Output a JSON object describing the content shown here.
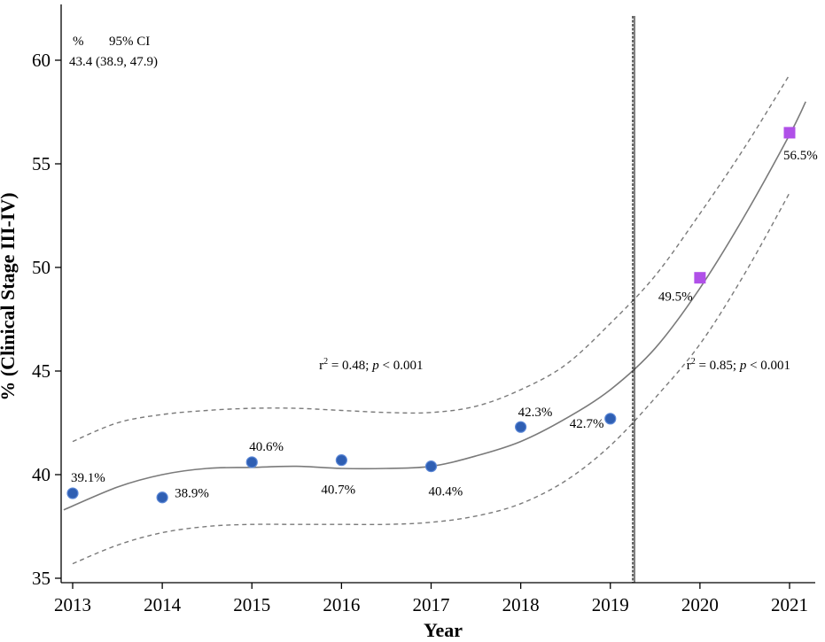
{
  "chart_data": {
    "type": "scatter",
    "xlabel": "Year",
    "ylabel": "% (Clinical Stage III-IV)",
    "xlim": [
      2013,
      2021
    ],
    "ylim": [
      35,
      62.5
    ],
    "x_ticks": [
      "2013",
      "2014",
      "2015",
      "2016",
      "2017",
      "2018",
      "2019",
      "2020",
      "2021"
    ],
    "y_ticks": [
      "35",
      "40",
      "45",
      "50",
      "55",
      "60"
    ],
    "grid": false,
    "legend": {
      "header_pct": "%",
      "header_ci": "95% CI",
      "value": "43.4 (38.9, 47.9)"
    },
    "series": [
      {
        "marker": "circle",
        "color": "#2f5fb3",
        "points": [
          {
            "x": 2013,
            "y": 39.1,
            "label": "39.1%"
          },
          {
            "x": 2014,
            "y": 38.9,
            "label": "38.9%"
          },
          {
            "x": 2015,
            "y": 40.6,
            "label": "40.6%"
          },
          {
            "x": 2016,
            "y": 40.7,
            "label": "40.7%"
          },
          {
            "x": 2017,
            "y": 40.4,
            "label": "40.4%"
          },
          {
            "x": 2018,
            "y": 42.3,
            "label": "42.3%"
          },
          {
            "x": 2019,
            "y": 42.7,
            "label": "42.7%"
          }
        ]
      },
      {
        "marker": "square",
        "color": "#b050e8",
        "points": [
          {
            "x": 2020,
            "y": 49.5,
            "label": "49.5%"
          },
          {
            "x": 2021,
            "y": 56.5,
            "label": "56.5%"
          }
        ]
      }
    ],
    "fit": {
      "x": [
        2012.9,
        2013.5,
        2014,
        2014.5,
        2015,
        2015.5,
        2016,
        2016.5,
        2017,
        2017.5,
        2018,
        2018.5,
        2019,
        2019.5,
        2020,
        2020.5,
        2021,
        2021.18
      ],
      "y": [
        38.3,
        39.4,
        40.0,
        40.3,
        40.35,
        40.4,
        40.3,
        40.3,
        40.4,
        40.9,
        41.6,
        42.7,
        44.1,
        46.1,
        49.0,
        52.5,
        56.4,
        58.0
      ]
    },
    "ci_upper": {
      "x": [
        2013,
        2013.5,
        2014,
        2014.5,
        2015,
        2015.5,
        2016,
        2016.5,
        2017,
        2017.5,
        2018,
        2018.5,
        2019,
        2019.5,
        2020,
        2020.5,
        2021
      ],
      "y": [
        41.6,
        42.5,
        42.9,
        43.1,
        43.2,
        43.2,
        43.1,
        43.0,
        43.0,
        43.3,
        44.1,
        45.3,
        47.3,
        49.6,
        52.6,
        55.8,
        59.3
      ]
    },
    "ci_lower": {
      "x": [
        2013,
        2013.5,
        2014,
        2014.5,
        2015,
        2015.5,
        2016,
        2016.5,
        2017,
        2017.5,
        2018,
        2018.5,
        2019,
        2019.5,
        2020,
        2020.5,
        2021
      ],
      "y": [
        35.7,
        36.6,
        37.2,
        37.5,
        37.6,
        37.6,
        37.6,
        37.6,
        37.7,
        38.0,
        38.6,
        39.7,
        41.4,
        43.7,
        46.3,
        49.7,
        53.6
      ]
    },
    "vertical_line_x": 2019.25,
    "annotations": [
      {
        "text_pre": "r",
        "sup": "2",
        "text_mid": " = 0.48; ",
        "italic": "p",
        "text_post": " < 0.001",
        "x": 2015.75,
        "y": 45.3
      },
      {
        "text_pre": "r",
        "sup": "2",
        "text_mid": " = 0.85; ",
        "italic": "p",
        "text_post": " < 0.001",
        "x": 2019.85,
        "y": 45.3
      }
    ]
  }
}
